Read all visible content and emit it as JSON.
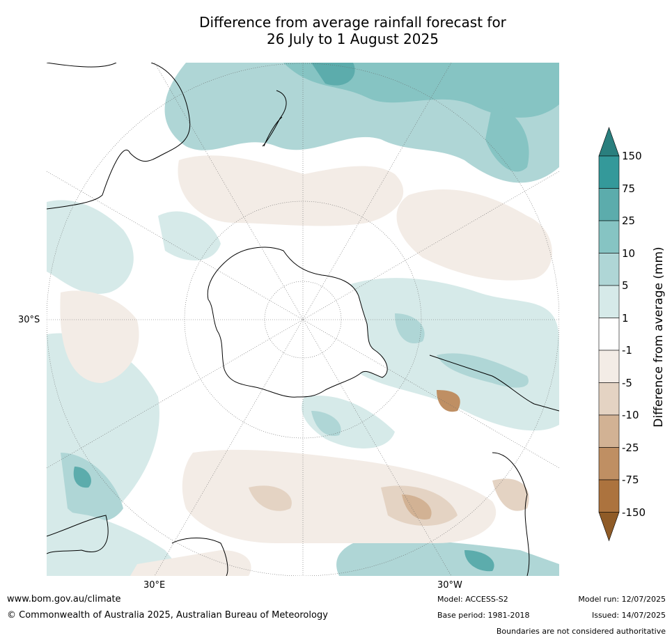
{
  "title_line1": "Difference from average rainfall forecast for",
  "title_line2": "26 July to 1 August 2025",
  "map": {
    "projection": "south-polar-stereographic",
    "lat_labels": [
      "30°S"
    ],
    "lon_labels": [
      "30°E",
      "30°W"
    ]
  },
  "legend": {
    "title": "Difference from average (mm)",
    "ticks": [
      "150",
      "75",
      "25",
      "10",
      "5",
      "1",
      "-1",
      "-5",
      "-10",
      "-25",
      "-75",
      "-150"
    ],
    "colors": [
      "#2a7f7e",
      "#34999a",
      "#5cacac",
      "#86c4c3",
      "#afd6d6",
      "#d6eae9",
      "#ffffff",
      "#f3ece6",
      "#e4d3c3",
      "#d2b294",
      "#bf8f63",
      "#ac733e",
      "#8f5b27"
    ]
  },
  "footer": {
    "website": "www.bom.gov.au/climate",
    "copyright": "© Commonwealth of Australia 2025, Australian Bureau of Meteorology",
    "model": "Model: ACCESS-S2",
    "base_period": "Base period: 1981-2018",
    "model_run": "Model run: 12/07/2025",
    "issued": "Issued: 14/07/2025",
    "boundaries_note": "Boundaries are not considered authoritative"
  }
}
